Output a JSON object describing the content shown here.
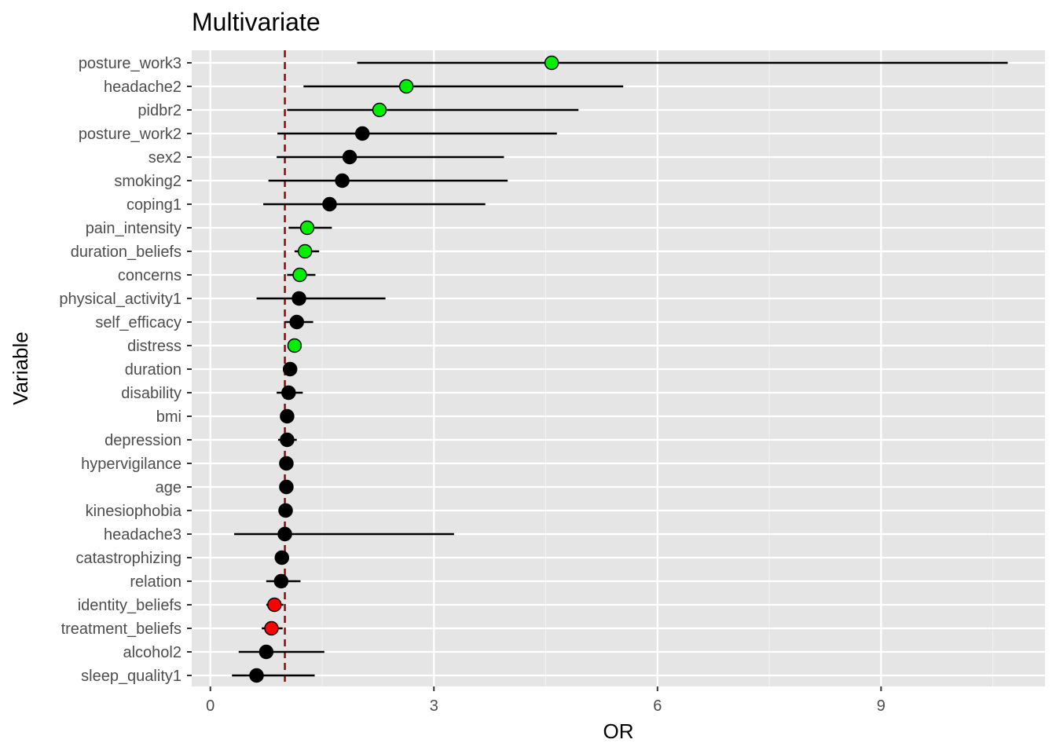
{
  "chart_data": {
    "type": "scatter",
    "subtype": "forest-plot",
    "title": "Multivariate",
    "xlabel": "OR",
    "ylabel": "Variable",
    "xlim": [
      -0.25,
      11.2
    ],
    "xticks": [
      0,
      3,
      6,
      9
    ],
    "reference_line": {
      "x": 1,
      "style": "dashed",
      "color": "#8b0000"
    },
    "grid": true,
    "panel_background": "#e5e5e5",
    "legend": "none",
    "point_colors": {
      "significant_positive": "#00ee00",
      "significant_negative": "#ff0000",
      "not_significant": "#000000"
    },
    "categories": [
      "posture_work3",
      "headache2",
      "pidbr2",
      "posture_work2",
      "sex2",
      "smoking2",
      "coping1",
      "pain_intensity",
      "duration_beliefs",
      "concerns",
      "physical_activity1",
      "self_efficacy",
      "distress",
      "duration",
      "disability",
      "bmi",
      "depression",
      "hypervigilance",
      "age",
      "kinesiophobia",
      "headache3",
      "catastrophizing",
      "relation",
      "identity_beliefs",
      "treatment_beliefs",
      "alcohol2",
      "sleep_quality1"
    ],
    "or": [
      4.58,
      2.63,
      2.27,
      2.04,
      1.87,
      1.77,
      1.6,
      1.3,
      1.27,
      1.2,
      1.19,
      1.16,
      1.13,
      1.07,
      1.05,
      1.03,
      1.03,
      1.02,
      1.02,
      1.01,
      1.0,
      0.96,
      0.95,
      0.86,
      0.82,
      0.75,
      0.62
    ],
    "lower": [
      1.97,
      1.25,
      1.03,
      0.9,
      0.89,
      0.78,
      0.71,
      1.05,
      1.13,
      1.03,
      0.62,
      1.0,
      1.05,
      0.99,
      0.89,
      0.98,
      0.91,
      0.97,
      0.98,
      0.95,
      0.32,
      0.9,
      0.75,
      0.75,
      0.69,
      0.38,
      0.29
    ],
    "upper": [
      10.7,
      5.54,
      4.94,
      4.65,
      3.94,
      3.99,
      3.69,
      1.63,
      1.46,
      1.41,
      2.35,
      1.38,
      1.22,
      1.14,
      1.24,
      1.08,
      1.16,
      1.06,
      1.06,
      1.07,
      3.27,
      1.03,
      1.21,
      0.98,
      0.97,
      1.53,
      1.4
    ],
    "significance": [
      "positive",
      "positive",
      "positive",
      "none",
      "none",
      "none",
      "none",
      "positive",
      "positive",
      "positive",
      "none",
      "none",
      "positive",
      "none",
      "none",
      "none",
      "none",
      "none",
      "none",
      "none",
      "none",
      "none",
      "none",
      "negative",
      "negative",
      "none",
      "none"
    ]
  }
}
